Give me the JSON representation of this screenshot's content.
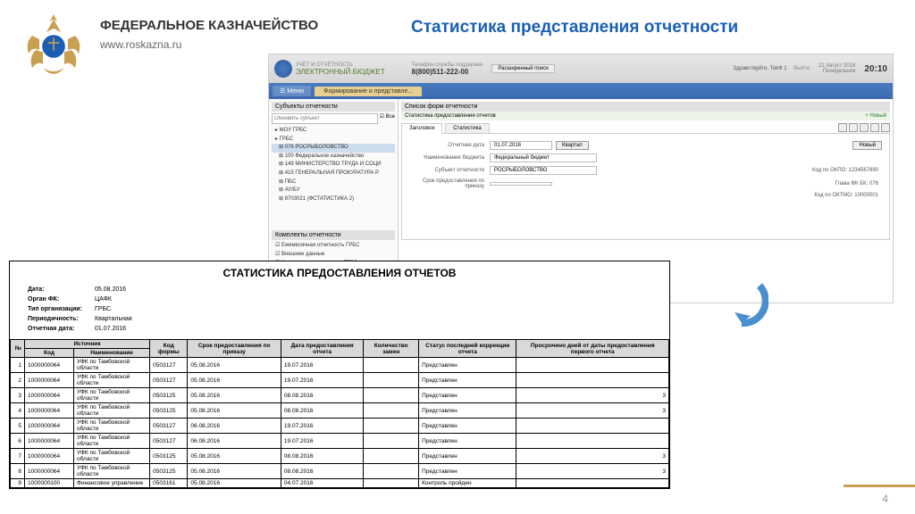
{
  "header": {
    "org": "ФЕДЕРАЛЬНОЕ КАЗНАЧЕЙСТВО",
    "url": "www.roskazna.ru",
    "logo_color_gold": "#c9a050",
    "logo_color_blue": "#1a5fb4"
  },
  "page_title": "Статистика представления отчетности",
  "page_number": "4",
  "app": {
    "brand_small": "УЧЁТ И ОТЧЁТНОСТЬ",
    "brand": "ЭЛЕКТРОННЫЙ БЮДЖЕТ",
    "phone_label": "Телефон службы поддержки",
    "phone": "8(800)511-222-00",
    "search_btn": "Расширенный поиск",
    "user_greeting": "Здравствуйте, TokФ 1",
    "exit": "Выйти",
    "date_day": "22 Август 2016",
    "date_dow": "Понедельник",
    "time": "20:10",
    "menu": "Меню",
    "active_tab": "Формирование и представле...",
    "sidebar": {
      "title": "Субъекты отчетности",
      "update": "Обновить субъект",
      "all": "Все",
      "tree": [
        "МОУ ГРБС",
        "ГРБС",
        "076 РОСРЫБОЛОВСТВО",
        "100 Федеральное казначейство",
        "149 МИНИСТЕРСТВО ТРУДА И СОЦИ",
        "415 ГЕНЕРАЛЬНАЯ ПРОКУРАТУРА Р",
        "ПБС",
        "АУ/БУ",
        "8703021 (ФСТАТИСТИКА 2)"
      ],
      "section2": "Комплекты отчетности",
      "items2": [
        "Ежемесячная отчетность ГРБС",
        "Внешние данные",
        "Квартальная отчетность ГРБС",
        "Годовая отчетность ГРБС"
      ],
      "komplekt": "Комплект 17"
    },
    "main": {
      "title": "Список форм отчетности",
      "subtitle": "Статистика предоставления отчетов",
      "new_btn": "Новый",
      "tab1": "Заголовок",
      "tab2": "Статистика",
      "form": {
        "date_lbl": "Отчетная дата",
        "date_val": "01.07.2016",
        "quarter_btn": "Квартал",
        "new_btn": "Новый",
        "budget_lbl": "Наименование бюджета",
        "budget_val": "Федеральный бюджет",
        "subj_lbl": "Субъект отчетности",
        "subj_val": "РОСРЫБОЛОВСТВО",
        "srok_lbl": "Срок предоставления по приказу",
        "ogrn_lbl": "Код по ОКПО: 1234567890",
        "fkr_lbl": "Глава ФК БК: 076",
        "oktmo_lbl": "Код по ОКТМО: 10000001"
      },
      "footer": "Сообщить о проблеме BARS/GROUP"
    }
  },
  "report": {
    "title": "СТАТИСТИКА ПРЕДОСТАВЛЕНИЯ ОТЧЕТОВ",
    "meta": [
      {
        "lbl": "Дата:",
        "val": "05.08.2016"
      },
      {
        "lbl": "Орган ФК:",
        "val": "ЦАФК"
      },
      {
        "lbl": "Тип организации:",
        "val": "ГРБС"
      },
      {
        "lbl": "Периодичность:",
        "val": "Квартальная"
      },
      {
        "lbl": "Отчетная дата:",
        "val": "01.07.2016"
      }
    ],
    "columns": {
      "num": "№",
      "src": "Источник",
      "code": "Код",
      "name": "Наименование",
      "form": "Код формы",
      "srok": "Срок предоставления по приказу",
      "date": "Дата предоставления отчета",
      "zamen": "Количество замен",
      "status": "Статус последней коррекции отчета",
      "overdue": "Просрочено дней от даты предоставления первого отчета"
    },
    "rows": [
      {
        "n": "1",
        "code": "1000000064",
        "name": "УФК по Тамбовской области",
        "form": "0503127",
        "srok": "05.08.2016",
        "date": "19.07.2016",
        "zamen": "",
        "status": "Представлен",
        "over": ""
      },
      {
        "n": "2",
        "code": "1000000064",
        "name": "УФК по Тамбовской области",
        "form": "0503127",
        "srok": "05.08.2016",
        "date": "19.07.2016",
        "zamen": "",
        "status": "Представлен",
        "over": ""
      },
      {
        "n": "3",
        "code": "1000000064",
        "name": "УФК по Тамбовской области",
        "form": "0503125",
        "srok": "05.08.2016",
        "date": "08.08.2016",
        "zamen": "",
        "status": "Представлен",
        "over": "3"
      },
      {
        "n": "4",
        "code": "1000000064",
        "name": "УФК по Тамбовской области",
        "form": "0503125",
        "srok": "05.08.2016",
        "date": "08.08.2016",
        "zamen": "",
        "status": "Представлен",
        "over": "3"
      },
      {
        "n": "5",
        "code": "1000000064",
        "name": "УФК по Тамбовской области",
        "form": "0503127",
        "srok": "06.08.2016",
        "date": "19.07.2016",
        "zamen": "",
        "status": "Представлен",
        "over": ""
      },
      {
        "n": "6",
        "code": "1000000064",
        "name": "УФК по Тамбовской области",
        "form": "0503127",
        "srok": "06.08.2016",
        "date": "19.07.2016",
        "zamen": "",
        "status": "Представлен",
        "over": ""
      },
      {
        "n": "7",
        "code": "1000000064",
        "name": "УФК по Тамбовской области",
        "form": "0503125",
        "srok": "05.08.2016",
        "date": "08.08.2016",
        "zamen": "",
        "status": "Представлен",
        "over": "3"
      },
      {
        "n": "8",
        "code": "1000000064",
        "name": "УФК по Тамбовской области",
        "form": "0503125",
        "srok": "05.08.2016",
        "date": "08.08.2016",
        "zamen": "",
        "status": "Представлен",
        "over": "3"
      },
      {
        "n": "9",
        "code": "1000000100",
        "name": "Финансовое управление",
        "form": "0503161",
        "srok": "05.08.2016",
        "date": "04.07.2016",
        "zamen": "",
        "status": "Контроль пройден",
        "over": ""
      }
    ]
  },
  "colors": {
    "title_blue": "#1a5fb4",
    "app_header_bg": "#e0e0e0",
    "app_bar_bg": "#4a7bc0",
    "table_header_bg": "#d9d9d9",
    "arrow_color": "#4a8fd0"
  }
}
